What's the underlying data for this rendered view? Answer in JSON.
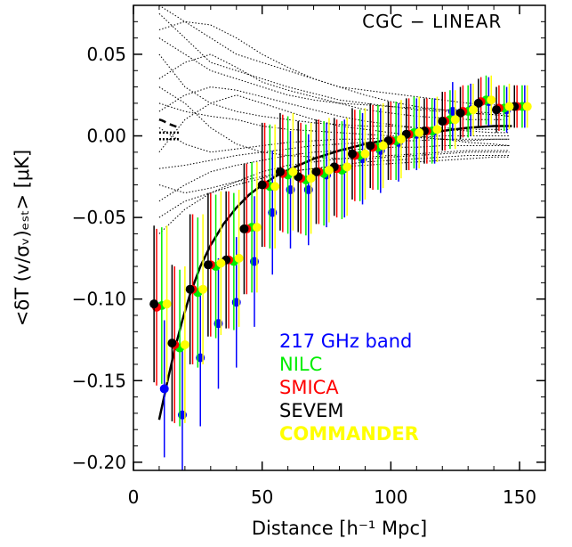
{
  "chart_data": {
    "type": "scatter",
    "title": "CGC − LINEAR",
    "xlabel": "Distance [h⁻¹ Mpc]",
    "ylabel": "<δT (v/σᵥ)ₑₛₜ> [μK]",
    "xlim": [
      0,
      160
    ],
    "ylim": [
      -0.205,
      0.08
    ],
    "x_ticks": [
      0,
      50,
      100,
      150
    ],
    "x_tick_labels": [
      "0",
      "50",
      "100",
      "150"
    ],
    "y_ticks": [
      -0.2,
      -0.15,
      -0.1,
      -0.05,
      0.0,
      0.05
    ],
    "y_tick_labels": [
      "−0.20",
      "−0.15",
      "−0.10",
      "−0.05",
      "0.00",
      "0.05"
    ],
    "grid": false,
    "legend_placement": "lower-right",
    "x": [
      10,
      17,
      24,
      31,
      38,
      45,
      52,
      59,
      66,
      73,
      80,
      87,
      94,
      101,
      108,
      115,
      122,
      129,
      136,
      143,
      150
    ],
    "series": [
      {
        "name": "217 GHz band",
        "color": "#0000ff",
        "offset": 2.0,
        "values": [
          -0.155,
          -0.171,
          -0.136,
          -0.115,
          -0.102,
          -0.077,
          -0.047,
          -0.033,
          -0.033,
          -0.024,
          -0.02,
          -0.014,
          -0.009,
          -0.004,
          0.001,
          0.003,
          0.015,
          0.016,
          0.021,
          0.016,
          0.018
        ],
        "errors": [
          0.042,
          0.042,
          0.042,
          0.04,
          0.04,
          0.04,
          0.038,
          0.036,
          0.034,
          0.032,
          0.03,
          0.028,
          0.026,
          0.024,
          0.022,
          0.02,
          0.018,
          0.016,
          0.015,
          0.014,
          0.013
        ]
      },
      {
        "name": "NILC",
        "color": "#00ee00",
        "offset": 1.0,
        "values": [
          -0.104,
          -0.13,
          -0.096,
          -0.08,
          -0.077,
          -0.056,
          -0.031,
          -0.024,
          -0.027,
          -0.023,
          -0.021,
          -0.012,
          -0.007,
          -0.003,
          0.002,
          0.003,
          0.01,
          0.015,
          0.022,
          0.017,
          0.018
        ],
        "errors": [
          0.048,
          0.048,
          0.046,
          0.044,
          0.042,
          0.04,
          0.038,
          0.036,
          0.034,
          0.032,
          0.03,
          0.028,
          0.026,
          0.024,
          0.022,
          0.02,
          0.018,
          0.016,
          0.015,
          0.014,
          0.013
        ]
      },
      {
        "name": "SMICA",
        "color": "#ff0000",
        "offset": -1.0,
        "values": [
          -0.105,
          -0.128,
          -0.094,
          -0.079,
          -0.076,
          -0.057,
          -0.03,
          -0.023,
          -0.026,
          -0.022,
          -0.02,
          -0.012,
          -0.007,
          -0.003,
          0.001,
          0.003,
          0.009,
          0.015,
          0.021,
          0.017,
          0.018
        ],
        "errors": [
          0.048,
          0.048,
          0.046,
          0.044,
          0.042,
          0.04,
          0.038,
          0.036,
          0.034,
          0.032,
          0.03,
          0.028,
          0.026,
          0.024,
          0.022,
          0.02,
          0.018,
          0.016,
          0.015,
          0.014,
          0.013
        ]
      },
      {
        "name": "SEVEM",
        "color": "#000000",
        "offset": -2.0,
        "values": [
          -0.103,
          -0.127,
          -0.094,
          -0.079,
          -0.076,
          -0.057,
          -0.03,
          -0.022,
          -0.025,
          -0.022,
          -0.019,
          -0.011,
          -0.006,
          -0.003,
          0.001,
          0.003,
          0.009,
          0.014,
          0.02,
          0.016,
          0.018
        ],
        "errors": [
          0.048,
          0.048,
          0.046,
          0.044,
          0.042,
          0.04,
          0.038,
          0.036,
          0.034,
          0.032,
          0.03,
          0.028,
          0.026,
          0.024,
          0.022,
          0.02,
          0.018,
          0.016,
          0.015,
          0.014,
          0.013
        ]
      },
      {
        "name": "COMMANDER",
        "color": "#ffff00",
        "offset": 3.0,
        "values": [
          -0.103,
          -0.128,
          -0.094,
          -0.078,
          -0.075,
          -0.056,
          -0.031,
          -0.022,
          -0.026,
          -0.021,
          -0.019,
          -0.011,
          -0.006,
          -0.002,
          0.002,
          0.004,
          0.01,
          0.016,
          0.022,
          0.018,
          0.018
        ],
        "errors": [
          0.048,
          0.048,
          0.046,
          0.044,
          0.042,
          0.04,
          0.038,
          0.036,
          0.034,
          0.032,
          0.03,
          0.028,
          0.026,
          0.024,
          0.022,
          0.02,
          0.018,
          0.016,
          0.015,
          0.014,
          0.013
        ]
      }
    ],
    "model_curve": {
      "x": [
        10,
        13,
        16,
        19,
        22,
        26,
        30,
        35,
        40,
        45,
        50,
        55,
        60,
        70,
        80,
        90,
        100,
        110,
        120,
        130,
        140,
        147
      ],
      "y": [
        -0.174,
        -0.152,
        -0.131,
        -0.113,
        -0.097,
        -0.08,
        -0.067,
        -0.054,
        -0.044,
        -0.036,
        -0.03,
        -0.025,
        -0.021,
        -0.014,
        -0.009,
        -0.005,
        -0.002,
        0.001,
        0.003,
        0.005,
        0.006,
        0.006
      ]
    },
    "dashed_curve": {
      "x": [
        10,
        11,
        12,
        13,
        14,
        15,
        16,
        17,
        18
      ],
      "y": [
        0.01,
        0.0095,
        0.0088,
        0.008,
        0.0072,
        0.0066,
        0.006,
        0.0055,
        0.005
      ]
    },
    "dotted_band": {
      "x": [
        10,
        18
      ],
      "upper": 0.002,
      "lower": -0.002
    },
    "null_simulations": [
      {
        "x": [
          10,
          20,
          30,
          40,
          50,
          60,
          70,
          80,
          90,
          100,
          110,
          120,
          130,
          140,
          146
        ],
        "y": [
          0.02,
          0.015,
          0.012,
          0.01,
          0.006,
          0.004,
          0.003,
          0.002,
          0.001,
          0.0,
          -0.001,
          -0.002,
          -0.003,
          -0.002,
          -0.002
        ]
      },
      {
        "x": [
          10,
          20,
          30,
          40,
          50,
          60,
          70,
          80,
          90,
          100,
          110,
          120,
          130,
          140,
          146
        ],
        "y": [
          -0.02,
          -0.018,
          -0.015,
          -0.012,
          -0.01,
          -0.008,
          -0.006,
          -0.005,
          -0.004,
          -0.003,
          -0.003,
          -0.002,
          -0.002,
          -0.002,
          -0.002
        ]
      },
      {
        "x": [
          10,
          20,
          30,
          40,
          50,
          60,
          70,
          80,
          90,
          100,
          110,
          120,
          130,
          140,
          146
        ],
        "y": [
          0.06,
          0.05,
          0.04,
          0.035,
          0.03,
          0.025,
          0.022,
          0.02,
          0.019,
          0.018,
          0.017,
          0.016,
          0.015,
          0.014,
          0.013
        ]
      },
      {
        "x": [
          10,
          20,
          30,
          40,
          50,
          60,
          70,
          80,
          90,
          100,
          110,
          120,
          130,
          140,
          146
        ],
        "y": [
          -0.05,
          -0.04,
          -0.035,
          -0.03,
          -0.026,
          -0.022,
          -0.02,
          -0.018,
          -0.016,
          -0.015,
          -0.014,
          -0.013,
          -0.012,
          -0.012,
          -0.012
        ]
      },
      {
        "x": [
          10,
          20,
          30,
          40,
          50,
          60,
          70,
          80,
          90,
          100,
          110,
          120,
          130,
          140,
          146
        ],
        "y": [
          0.035,
          0.045,
          0.05,
          0.042,
          0.033,
          0.028,
          0.024,
          0.02,
          0.016,
          0.014,
          0.012,
          0.011,
          0.01,
          0.01,
          0.01
        ]
      },
      {
        "x": [
          10,
          20,
          30,
          40,
          50,
          60,
          70,
          80,
          90,
          100,
          110,
          120,
          130,
          140,
          146
        ],
        "y": [
          -0.03,
          -0.035,
          -0.032,
          -0.028,
          -0.025,
          -0.022,
          -0.02,
          -0.019,
          -0.018,
          -0.017,
          -0.016,
          -0.015,
          -0.014,
          -0.013,
          -0.013
        ]
      },
      {
        "x": [
          10,
          20,
          30,
          40,
          50,
          60,
          70,
          80,
          90,
          100,
          110,
          120,
          130,
          140,
          146
        ],
        "y": [
          0.075,
          0.06,
          0.045,
          0.04,
          0.035,
          0.03,
          0.026,
          0.022,
          0.02,
          0.018,
          0.016,
          0.015,
          0.014,
          0.013,
          0.012
        ]
      },
      {
        "x": [
          10,
          20,
          30,
          40,
          50,
          60,
          70,
          80,
          90,
          100,
          110,
          120,
          130,
          140,
          146
        ],
        "y": [
          0.005,
          -0.005,
          -0.01,
          -0.008,
          -0.006,
          -0.004,
          -0.003,
          -0.002,
          -0.002,
          -0.001,
          -0.001,
          0.0,
          0.0,
          0.0,
          0.0
        ]
      },
      {
        "x": [
          10,
          20,
          30,
          40,
          50,
          60,
          70,
          80,
          90,
          100,
          110,
          120,
          130,
          140,
          146
        ],
        "y": [
          0.05,
          0.03,
          0.02,
          0.015,
          0.012,
          0.01,
          0.008,
          0.007,
          0.006,
          0.006,
          0.005,
          0.005,
          0.004,
          0.004,
          0.004
        ]
      },
      {
        "x": [
          10,
          20,
          30,
          40,
          50,
          60,
          70,
          80,
          90,
          100,
          110,
          120,
          130,
          140,
          146
        ],
        "y": [
          -0.04,
          -0.03,
          -0.022,
          -0.018,
          -0.015,
          -0.012,
          -0.01,
          -0.009,
          -0.008,
          -0.007,
          -0.007,
          -0.006,
          -0.006,
          -0.006,
          -0.006
        ]
      },
      {
        "x": [
          10,
          20,
          30,
          40,
          50,
          60,
          70,
          80,
          90,
          100,
          110,
          120,
          130,
          140,
          146
        ],
        "y": [
          0.08,
          0.07,
          0.06,
          0.05,
          0.045,
          0.04,
          0.035,
          0.03,
          0.028,
          0.026,
          0.024,
          0.022,
          0.02,
          0.019,
          0.018
        ]
      },
      {
        "x": [
          10,
          20,
          30,
          40,
          50,
          60,
          70,
          80,
          90,
          100,
          110,
          120,
          130,
          140,
          146
        ],
        "y": [
          -0.01,
          0.01,
          0.02,
          0.025,
          0.02,
          0.015,
          0.01,
          0.006,
          0.004,
          0.002,
          0.0,
          -0.002,
          -0.004,
          -0.005,
          -0.006
        ]
      },
      {
        "x": [
          10,
          20,
          30,
          40,
          50,
          60,
          70,
          80,
          90,
          100,
          110,
          120,
          130,
          140,
          146
        ],
        "y": [
          0.03,
          0.02,
          0.005,
          -0.005,
          -0.01,
          -0.012,
          -0.013,
          -0.014,
          -0.014,
          -0.013,
          -0.012,
          -0.011,
          -0.01,
          -0.01,
          -0.01
        ]
      },
      {
        "x": [
          10,
          20,
          30,
          40,
          50,
          60,
          70,
          80,
          90,
          100,
          110,
          120,
          130,
          140,
          146
        ],
        "y": [
          -0.06,
          -0.045,
          -0.035,
          -0.028,
          -0.022,
          -0.018,
          -0.016,
          -0.014,
          -0.013,
          -0.012,
          -0.011,
          -0.01,
          -0.009,
          -0.009,
          -0.009
        ]
      },
      {
        "x": [
          10,
          20,
          30,
          40,
          50,
          60,
          70,
          80,
          90,
          100,
          110,
          120,
          130,
          140,
          146
        ],
        "y": [
          0.065,
          0.07,
          0.068,
          0.06,
          0.05,
          0.042,
          0.035,
          0.03,
          0.025,
          0.021,
          0.018,
          0.016,
          0.014,
          0.013,
          0.012
        ]
      },
      {
        "x": [
          10,
          20,
          30,
          40,
          50,
          60,
          70,
          80,
          90,
          100,
          110,
          120,
          130,
          140,
          146
        ],
        "y": [
          0.015,
          0.025,
          0.03,
          0.028,
          0.024,
          0.02,
          0.016,
          0.012,
          0.009,
          0.007,
          0.005,
          0.004,
          0.003,
          0.002,
          0.002
        ]
      }
    ]
  }
}
